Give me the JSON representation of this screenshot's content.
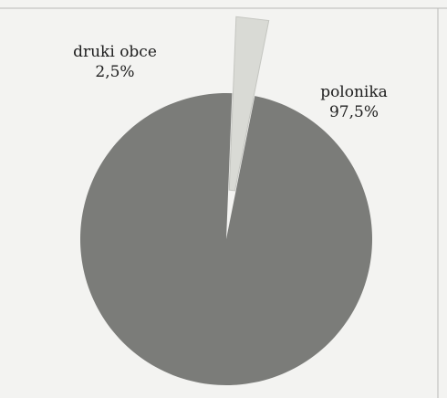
{
  "chart_data": {
    "type": "pie",
    "title": "",
    "slices": [
      {
        "label": "polonika",
        "value": 97.5,
        "value_label": "97,5%",
        "color": "#7b7c79",
        "exploded": false
      },
      {
        "label": "druki obce",
        "value": 2.5,
        "value_label": "2,5%",
        "color": "#d9dad5",
        "exploded": true
      }
    ],
    "legend": "none",
    "labels_outside": true
  },
  "colors": {
    "background": "#f3f3f1",
    "main_slice": "#7b7c79",
    "small_slice": "#d9dad5",
    "text": "#1e1e1e"
  }
}
